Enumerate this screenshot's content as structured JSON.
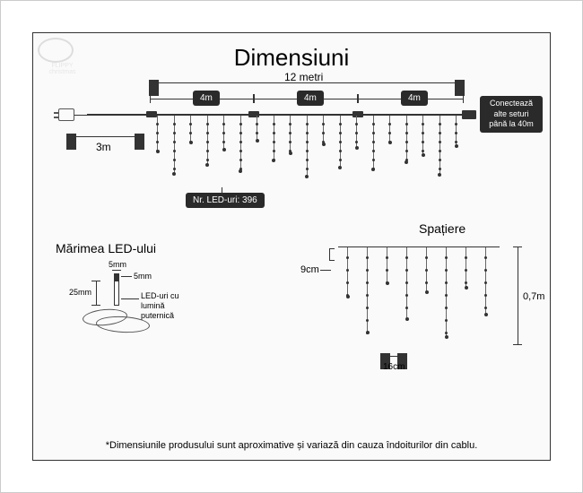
{
  "title": "Dimensiuni",
  "logo_text": "FLIPPY christmas",
  "main_diagram": {
    "total_width": "12 metri",
    "segments": [
      "4m",
      "4m",
      "4m"
    ],
    "lead_cable": "3m",
    "led_count_label": "Nr. LED-uri: 396",
    "connect_note": "Conectează\nalte seturi\npână la 40m"
  },
  "led_size": {
    "title": "Mărimea LED-ului",
    "width": "5mm",
    "tip": "5mm",
    "height": "25mm",
    "note": "LED-uri cu lumină\nputernică"
  },
  "spacing": {
    "title": "Spațiere",
    "vertical": "9cm",
    "horizontal": "16cm",
    "drop": "0,7m"
  },
  "footnote": "*Dimensiunile produsului sunt aproximative și variază din cauza îndoiturilor din cablu.",
  "colors": {
    "border": "#333333",
    "badge_bg": "#2a2a2a",
    "text": "#000000"
  },
  "strand_heights": [
    40,
    65,
    30,
    55,
    38,
    62,
    28,
    50,
    42,
    68,
    32,
    58,
    36,
    60,
    30,
    52,
    44,
    66,
    34
  ]
}
